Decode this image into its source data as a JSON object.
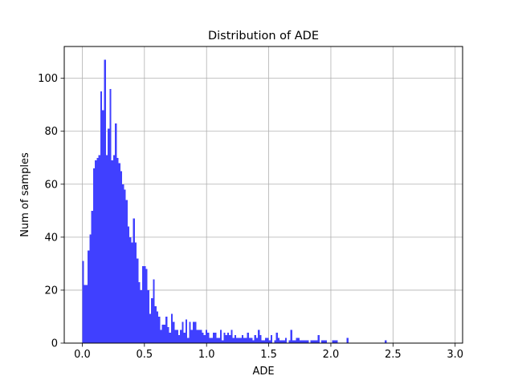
{
  "chart_data": {
    "type": "bar",
    "title": "Distribution of ADE",
    "xlabel": "ADE",
    "ylabel": "Num of samples",
    "xlim": [
      -0.145,
      3.06
    ],
    "ylim": [
      0,
      112
    ],
    "xticks": [
      0.0,
      0.5,
      1.0,
      1.5,
      2.0,
      2.5,
      3.0
    ],
    "xtick_labels": [
      "0.0",
      "0.5",
      "1.0",
      "1.5",
      "2.0",
      "2.5",
      "3.0"
    ],
    "yticks": [
      0,
      20,
      40,
      60,
      80,
      100
    ],
    "ytick_labels": [
      "0",
      "20",
      "40",
      "60",
      "80",
      "100"
    ],
    "grid": true,
    "bar_color": "#4040ff",
    "bin_start": 0.0,
    "bin_width": 0.01457,
    "values": [
      31,
      22,
      22,
      35,
      41,
      50,
      66,
      69,
      70,
      71,
      95,
      88,
      107,
      71,
      81,
      96,
      69,
      71,
      83,
      70,
      68,
      65,
      60,
      58,
      54,
      44,
      40,
      38,
      47,
      38,
      32,
      23,
      20,
      29,
      29,
      28,
      20,
      11,
      17,
      24,
      14,
      12,
      10,
      5,
      7,
      7,
      10,
      6,
      4,
      11,
      8,
      5,
      5,
      3,
      5,
      8,
      4,
      9,
      2,
      8,
      5,
      8,
      8,
      5,
      5,
      5,
      4,
      3,
      5,
      4,
      2,
      2,
      4,
      4,
      2,
      2,
      5,
      1,
      4,
      3,
      4,
      3,
      5,
      2,
      3,
      2,
      2,
      2,
      3,
      2,
      2,
      4,
      2,
      2,
      1,
      3,
      2,
      5,
      3,
      1,
      1,
      2,
      2,
      1,
      3,
      0,
      1,
      4,
      2,
      1,
      1,
      1,
      2,
      0,
      1,
      5,
      1,
      1,
      2,
      2,
      1,
      1,
      1,
      1,
      1,
      0,
      1,
      1,
      1,
      1,
      3,
      0,
      1,
      1,
      1,
      0,
      0,
      0,
      1,
      1,
      1,
      0,
      0,
      0,
      0,
      0,
      2,
      0,
      0,
      0,
      0,
      0,
      0,
      0,
      0,
      0,
      0,
      0,
      0,
      0,
      0,
      0,
      0,
      0,
      0,
      0,
      0,
      1
    ]
  }
}
